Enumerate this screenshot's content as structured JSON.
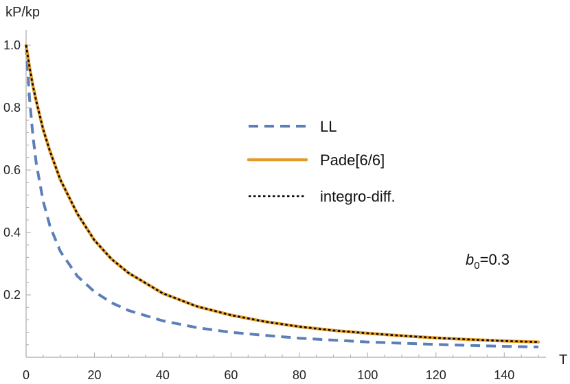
{
  "chart_data": {
    "type": "line",
    "xlabel": "T",
    "ylabel": "kP/kp",
    "xlim": [
      0,
      150
    ],
    "ylim": [
      0,
      1.0
    ],
    "x_ticks": [
      0,
      20,
      40,
      60,
      80,
      100,
      120,
      140
    ],
    "y_ticks": [
      0.2,
      0.4,
      0.6,
      0.8,
      1.0
    ],
    "x_tick_labels": [
      "0",
      "20",
      "40",
      "60",
      "80",
      "100",
      "120",
      "140"
    ],
    "y_tick_labels": [
      "0.2",
      "0.4",
      "0.6",
      "0.8",
      "1.0"
    ],
    "grid": false,
    "legend_position": "center-right",
    "annotation": {
      "base": "b",
      "sub": "0",
      "rest": "=0.3"
    },
    "series": [
      {
        "name": "LL",
        "color": "#5b7fb8",
        "style": "dashed",
        "x": [
          0,
          1,
          2,
          3,
          5,
          7,
          10,
          15,
          20,
          25,
          30,
          40,
          50,
          60,
          70,
          80,
          90,
          100,
          110,
          120,
          130,
          140,
          150
        ],
        "y": [
          1.0,
          0.83,
          0.71,
          0.62,
          0.5,
          0.42,
          0.34,
          0.26,
          0.21,
          0.175,
          0.15,
          0.117,
          0.095,
          0.08,
          0.07,
          0.061,
          0.055,
          0.049,
          0.045,
          0.041,
          0.038,
          0.035,
          0.033
        ]
      },
      {
        "name": "Pade[6/6]",
        "color": "#e39c2a",
        "style": "solid",
        "x": [
          0,
          1,
          2,
          3,
          5,
          7,
          10,
          15,
          20,
          25,
          30,
          40,
          50,
          60,
          70,
          80,
          90,
          100,
          110,
          120,
          130,
          140,
          150
        ],
        "y": [
          1.0,
          0.93,
          0.87,
          0.82,
          0.73,
          0.66,
          0.57,
          0.46,
          0.375,
          0.315,
          0.27,
          0.205,
          0.163,
          0.135,
          0.114,
          0.098,
          0.086,
          0.077,
          0.069,
          0.062,
          0.057,
          0.052,
          0.049
        ]
      },
      {
        "name": "integro-diff.",
        "color": "#000000",
        "style": "dotted",
        "x": [
          0,
          1,
          2,
          3,
          5,
          7,
          10,
          15,
          20,
          25,
          30,
          40,
          50,
          60,
          70,
          80,
          90,
          100,
          110,
          120,
          130,
          140,
          150
        ],
        "y": [
          1.0,
          0.93,
          0.87,
          0.82,
          0.73,
          0.66,
          0.57,
          0.46,
          0.375,
          0.315,
          0.27,
          0.205,
          0.163,
          0.135,
          0.114,
          0.098,
          0.086,
          0.077,
          0.069,
          0.062,
          0.057,
          0.052,
          0.049
        ]
      }
    ]
  }
}
